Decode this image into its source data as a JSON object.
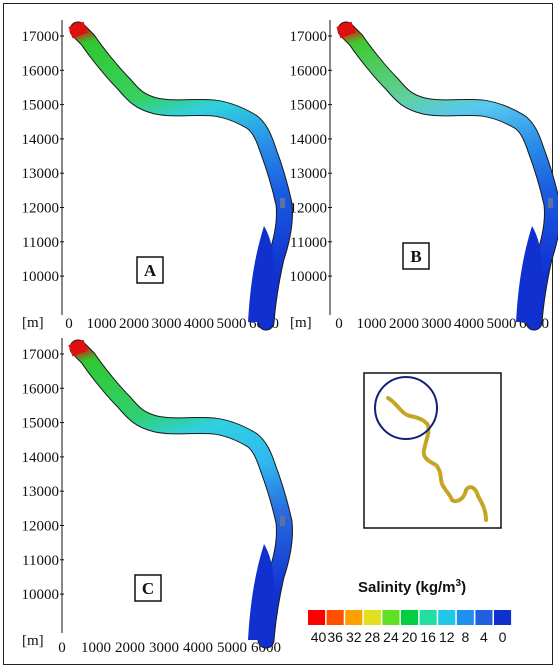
{
  "units_label": "[m]",
  "y_ticks": [
    "17000",
    "16000",
    "15000",
    "14000",
    "13000",
    "12000",
    "11000",
    "10000"
  ],
  "x_ticks": [
    "0",
    "1000",
    "2000",
    "3000",
    "4000",
    "5000",
    "6000"
  ],
  "panels": [
    {
      "label": "A",
      "zone_colors": [
        "#e01010",
        "#30c830",
        "#38d060",
        "#30d0e0",
        "#2a8ee8",
        "#1a5ce0",
        "#1030d0"
      ]
    },
    {
      "label": "B",
      "zone_colors": [
        "#e01010",
        "#40c830",
        "#60d0a0",
        "#58c8f0",
        "#2a8ee8",
        "#1a5ce0",
        "#1030d0"
      ]
    },
    {
      "label": "C",
      "zone_colors": [
        "#e01010",
        "#30c830",
        "#30d070",
        "#30d0e0",
        "#30b8f0",
        "#2a6ee0",
        "#1030d0"
      ]
    }
  ],
  "legend": {
    "title": "Salinity (kg/m",
    "title_sup": "3",
    "title_end": ")",
    "labels": [
      "40",
      "36",
      "32",
      "28",
      "24",
      "20",
      "16",
      "12",
      "8",
      "4",
      "0"
    ],
    "colors": [
      "#ff0000",
      "#ff5000",
      "#ffa000",
      "#e0e020",
      "#60e020",
      "#00d040",
      "#20e0a0",
      "#20c8e8",
      "#2090f0",
      "#2060e0",
      "#1030d0"
    ]
  }
}
